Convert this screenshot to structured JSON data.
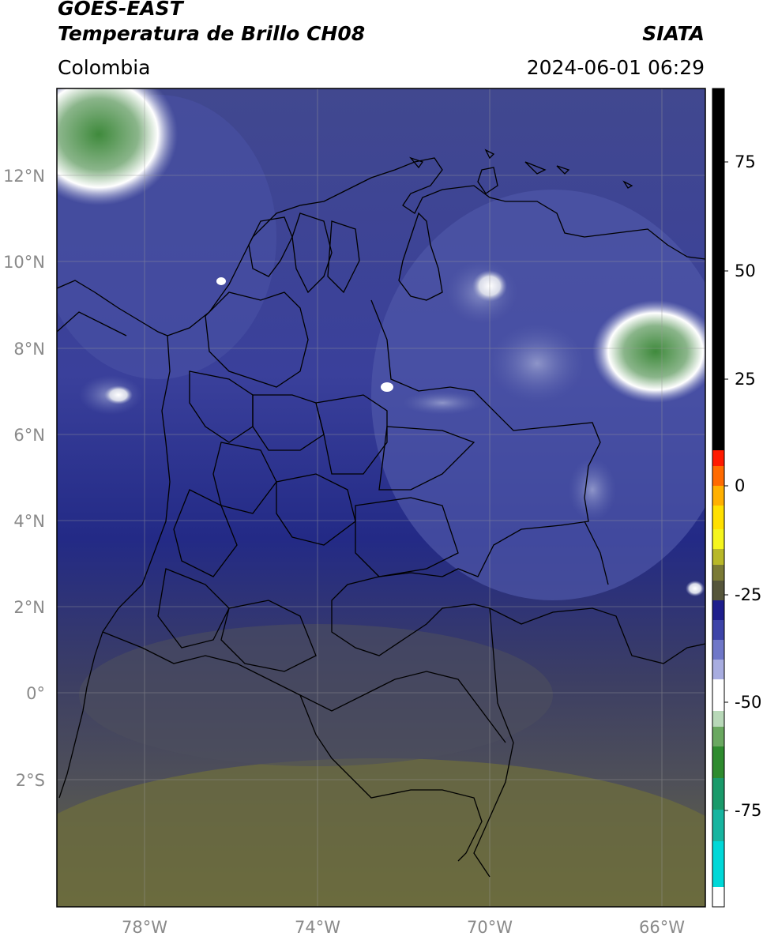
{
  "header": {
    "satellite": "GOES-EAST",
    "product": "Temperatura de Brillo CH08",
    "organization": "SIATA",
    "region": "Colombia",
    "timestamp": "2024-06-01 06:29"
  },
  "map": {
    "lat_labels": [
      "12°N",
      "10°N",
      "8°N",
      "6°N",
      "4°N",
      "2°N",
      "0°",
      "2°S"
    ],
    "lon_labels": [
      "78°W",
      "74°W",
      "70°W",
      "66°W"
    ],
    "colors": {
      "cold_blue": "#2a2f8c",
      "mid_blue": "#3d4a9e",
      "pale_blue": "#5a63ad",
      "gray_olive": "#4e4f5a",
      "olive": "#6f6f3c",
      "green": "#3f8a3c",
      "white": "#ffffff"
    }
  },
  "colorbar": {
    "tick_labels": [
      "75",
      "50",
      "25",
      "0",
      "-25",
      "-50",
      "-75"
    ],
    "colors": [
      "#000000",
      "#ff0000",
      "#ffa500",
      "#ffff00",
      "#4b4b2f",
      "#1e1e8c",
      "#ffffff",
      "#2e8b2e",
      "#00d0d0"
    ]
  }
}
